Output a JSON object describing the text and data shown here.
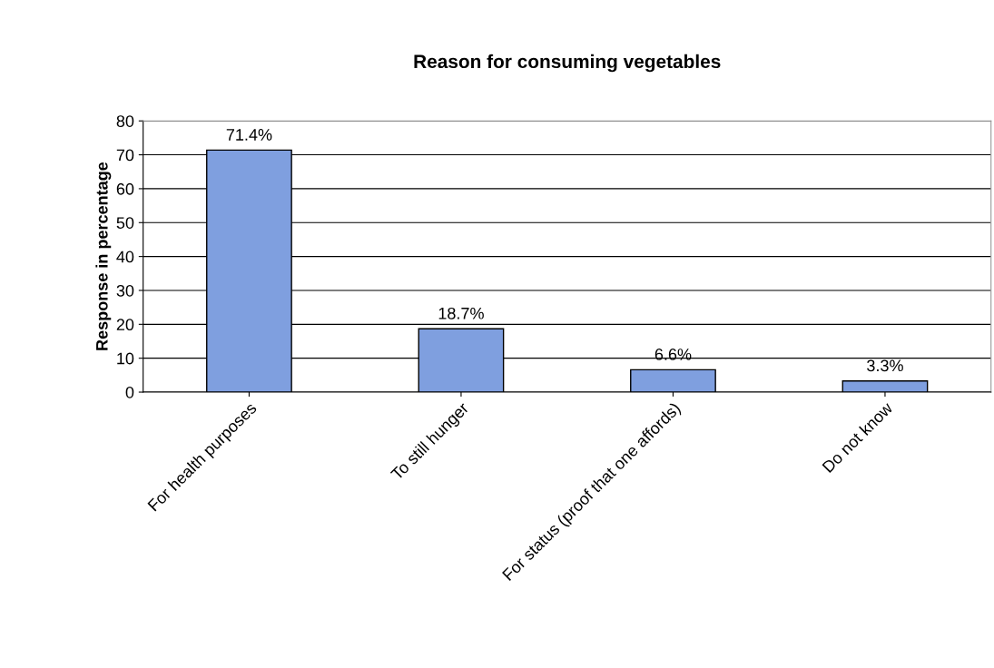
{
  "chart_data": {
    "type": "bar",
    "title": "Reason for consuming vegetables",
    "ylabel": "Response in percentage",
    "categories": [
      "For health purposes",
      "To still hunger",
      "For status (proof that one affords)",
      "Do not know"
    ],
    "values": [
      71.4,
      18.7,
      6.6,
      3.3
    ],
    "value_labels": [
      "71.4%",
      "18.7%",
      "6.6%",
      "3.3%"
    ],
    "color": "#7f9fdf",
    "ylim": [
      0,
      80
    ],
    "yticks": [
      0,
      10,
      20,
      30,
      40,
      50,
      60,
      70,
      80
    ],
    "grid": "y"
  }
}
